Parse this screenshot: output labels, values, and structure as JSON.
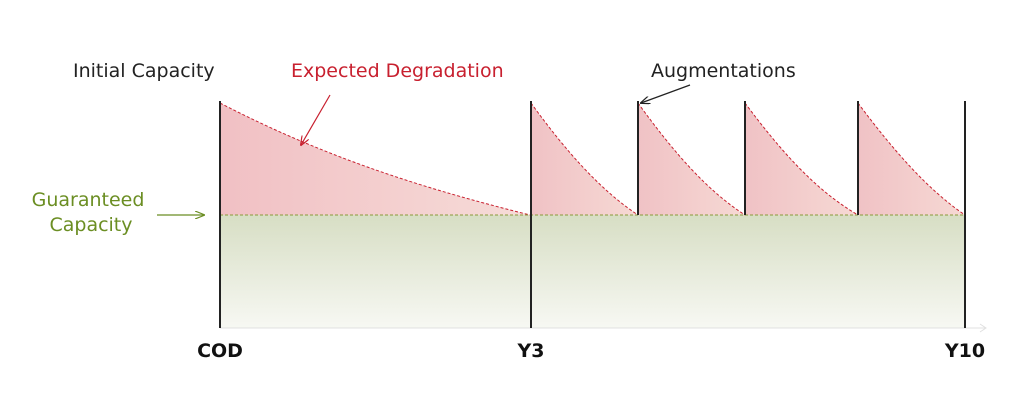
{
  "labels": {
    "initial_capacity": "Initial Capacity",
    "expected_degradation": "Expected Degradation",
    "augmentations": "Augmentations",
    "guaranteed_capacity_line1": "Guaranteed",
    "guaranteed_capacity_line2": "Capacity"
  },
  "axis": {
    "ticks": [
      "COD",
      "Y3",
      "Y10"
    ]
  },
  "colors": {
    "degradation_red": "#c8202f",
    "guaranteed_green": "#6b8e23",
    "degradation_fill": "#f2c7c9",
    "guaranteed_fill": "#dfe4cf",
    "line_dark": "#222222",
    "axis_line": "#e0e0e0"
  }
}
